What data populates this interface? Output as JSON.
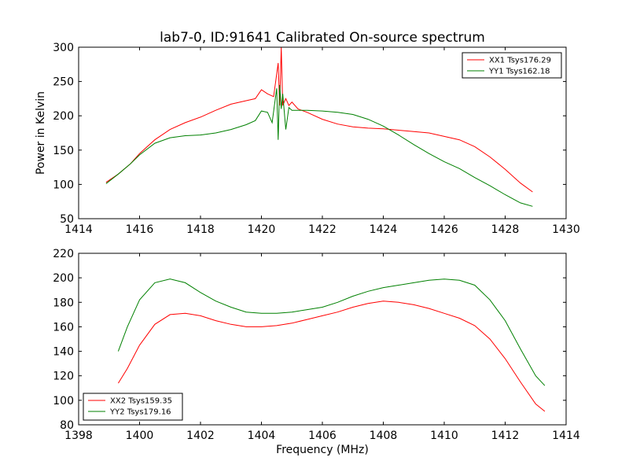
{
  "figure": {
    "title": "lab7-0, ID:91641 Calibrated On-source spectrum"
  },
  "chart_data": [
    {
      "type": "line",
      "title": "lab7-0, ID:91641 Calibrated On-source spectrum",
      "xlabel": "",
      "ylabel": "Power in Kelvin",
      "xlim": [
        1414,
        1430
      ],
      "ylim": [
        50,
        300
      ],
      "xticks": [
        1414,
        1416,
        1418,
        1420,
        1422,
        1424,
        1426,
        1428,
        1430
      ],
      "yticks": [
        50,
        100,
        150,
        200,
        250,
        300
      ],
      "grid": false,
      "legend": "top-right",
      "series": [
        {
          "name": "XX1 Tsys176.29",
          "color": "#ff0000",
          "x": [
            1414.9,
            1415.3,
            1415.7,
            1416.0,
            1416.5,
            1417.0,
            1417.5,
            1418.0,
            1418.5,
            1419.0,
            1419.5,
            1419.8,
            1420.0,
            1420.2,
            1420.4,
            1420.55,
            1420.6,
            1420.65,
            1420.7,
            1420.8,
            1420.9,
            1421.0,
            1421.2,
            1421.5,
            1422.0,
            1422.5,
            1423.0,
            1423.5,
            1424.0,
            1424.5,
            1425.0,
            1425.5,
            1426.0,
            1426.5,
            1427.0,
            1427.5,
            1428.0,
            1428.5,
            1428.9
          ],
          "y": [
            103,
            115,
            130,
            145,
            165,
            180,
            190,
            198,
            208,
            217,
            222,
            225,
            238,
            232,
            228,
            277,
            215,
            300,
            215,
            225,
            215,
            220,
            210,
            205,
            195,
            188,
            184,
            182,
            181,
            179,
            177,
            175,
            170,
            165,
            155,
            140,
            122,
            102,
            89
          ]
        },
        {
          "name": "YY1 Tsys162.18",
          "color": "#008000",
          "x": [
            1414.9,
            1415.3,
            1415.7,
            1416.0,
            1416.5,
            1417.0,
            1417.5,
            1418.0,
            1418.5,
            1419.0,
            1419.5,
            1419.8,
            1420.0,
            1420.2,
            1420.35,
            1420.5,
            1420.55,
            1420.6,
            1420.65,
            1420.7,
            1420.8,
            1420.9,
            1421.0,
            1421.5,
            1422.0,
            1422.5,
            1423.0,
            1423.5,
            1424.0,
            1424.5,
            1425.0,
            1425.5,
            1426.0,
            1426.5,
            1427.0,
            1427.5,
            1428.0,
            1428.5,
            1428.9
          ],
          "y": [
            101,
            115,
            130,
            143,
            160,
            168,
            171,
            172,
            175,
            180,
            187,
            193,
            207,
            205,
            190,
            240,
            165,
            245,
            210,
            232,
            180,
            212,
            208,
            208,
            207,
            205,
            202,
            195,
            185,
            172,
            158,
            145,
            133,
            123,
            110,
            98,
            85,
            73,
            68
          ]
        }
      ]
    },
    {
      "type": "line",
      "title": "",
      "xlabel": "Frequency (MHz)",
      "ylabel": "",
      "xlim": [
        1398,
        1414
      ],
      "ylim": [
        80,
        220
      ],
      "xticks": [
        1398,
        1400,
        1402,
        1404,
        1406,
        1408,
        1410,
        1412,
        1414
      ],
      "yticks": [
        80,
        100,
        120,
        140,
        160,
        180,
        200,
        220
      ],
      "grid": false,
      "legend": "bottom-left",
      "series": [
        {
          "name": "XX2 Tsys159.35",
          "color": "#ff0000",
          "x": [
            1399.3,
            1399.6,
            1400.0,
            1400.5,
            1401.0,
            1401.5,
            1402.0,
            1402.5,
            1403.0,
            1403.5,
            1404.0,
            1404.5,
            1405.0,
            1405.5,
            1406.0,
            1406.5,
            1407.0,
            1407.5,
            1408.0,
            1408.5,
            1409.0,
            1409.5,
            1410.0,
            1410.5,
            1411.0,
            1411.5,
            1412.0,
            1412.5,
            1413.0,
            1413.3
          ],
          "y": [
            114,
            126,
            145,
            162,
            170,
            171,
            169,
            165,
            162,
            160,
            160,
            161,
            163,
            166,
            169,
            172,
            176,
            179,
            181,
            180,
            178,
            175,
            171,
            167,
            161,
            150,
            134,
            115,
            97,
            91
          ]
        },
        {
          "name": "YY2 Tsys179.16",
          "color": "#008000",
          "x": [
            1399.3,
            1399.6,
            1400.0,
            1400.5,
            1401.0,
            1401.5,
            1402.0,
            1402.5,
            1403.0,
            1403.5,
            1404.0,
            1404.5,
            1405.0,
            1405.5,
            1406.0,
            1406.5,
            1407.0,
            1407.5,
            1408.0,
            1408.5,
            1409.0,
            1409.5,
            1410.0,
            1410.5,
            1411.0,
            1411.5,
            1412.0,
            1412.5,
            1413.0,
            1413.3
          ],
          "y": [
            140,
            160,
            182,
            196,
            199,
            196,
            188,
            181,
            176,
            172,
            171,
            171,
            172,
            174,
            176,
            180,
            185,
            189,
            192,
            194,
            196,
            198,
            199,
            198,
            194,
            182,
            165,
            142,
            120,
            112
          ]
        }
      ]
    }
  ]
}
